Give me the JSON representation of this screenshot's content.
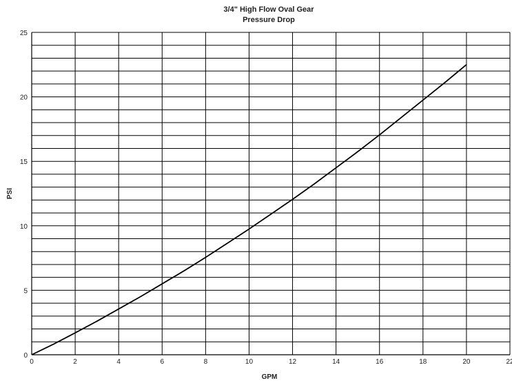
{
  "chart_data": {
    "type": "line",
    "title": "3/4\" High Flow Oval Gear",
    "subtitle": "Pressure Drop",
    "xlabel": "GPM",
    "ylabel": "PSI",
    "xlim": [
      0,
      22
    ],
    "ylim": [
      0,
      25
    ],
    "x_ticks": [
      0,
      2,
      4,
      6,
      8,
      10,
      12,
      14,
      16,
      18,
      20,
      22
    ],
    "y_ticks": [
      0,
      5,
      10,
      15,
      20,
      25
    ],
    "y_gridlines": [
      0,
      1,
      2,
      3,
      4,
      5,
      6,
      7,
      8,
      9,
      10,
      11,
      12,
      13,
      14,
      15,
      16,
      17,
      18,
      19,
      20,
      21,
      22,
      23,
      24,
      25
    ],
    "grid": true,
    "series": [
      {
        "color": "#000000",
        "x": [
          0,
          1,
          2,
          3,
          4,
          5,
          6,
          7,
          8,
          9,
          10,
          11,
          12,
          13,
          14,
          15,
          16,
          17,
          18,
          19,
          20
        ],
        "values": [
          0,
          0.82,
          1.7,
          2.6,
          3.55,
          4.5,
          5.5,
          6.5,
          7.55,
          8.65,
          9.75,
          10.9,
          12.05,
          13.25,
          14.5,
          15.75,
          17.05,
          18.4,
          19.75,
          21.1,
          22.5
        ]
      }
    ]
  }
}
